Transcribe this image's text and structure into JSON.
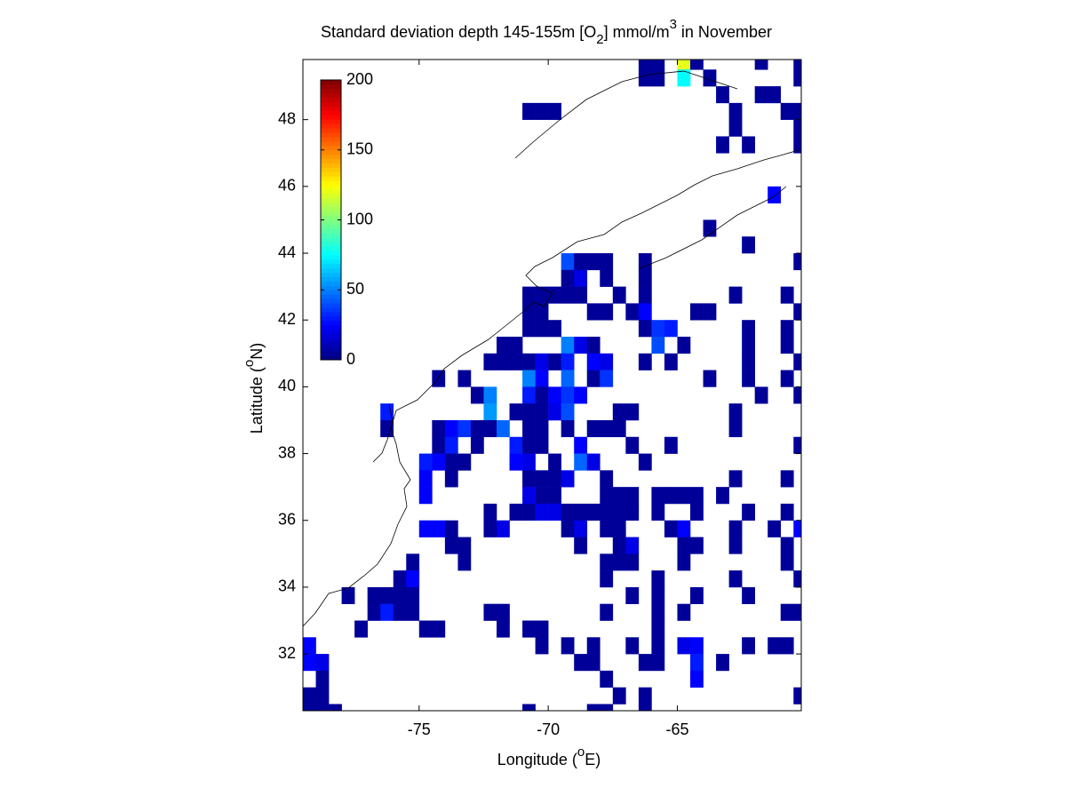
{
  "chart_data": {
    "type": "heatmap",
    "title_parts": [
      "Standard deviation depth 145-155m [O",
      "2",
      "] mmol/m",
      "3",
      " in November"
    ],
    "xlabel_parts": [
      "Longitude (",
      "o",
      "E)"
    ],
    "ylabel_parts": [
      "Latitude (",
      "o",
      "N)"
    ],
    "xlim": [
      -79.5,
      -60.2
    ],
    "ylim": [
      30.3,
      49.8
    ],
    "xticks": [
      -75,
      -70,
      -65
    ],
    "yticks": [
      32,
      34,
      36,
      38,
      40,
      42,
      44,
      46,
      48
    ],
    "colormap": "jet",
    "clim": [
      0,
      200
    ],
    "cticks": [
      0,
      50,
      100,
      150,
      200
    ],
    "colorbar_corner": "upper left",
    "cells": [
      [
        -66.25,
        49.75,
        5
      ],
      [
        -65.75,
        49.75,
        5
      ],
      [
        -64.75,
        49.75,
        120
      ],
      [
        -64.25,
        49.75,
        5
      ],
      [
        -61.75,
        49.75,
        5
      ],
      [
        -60.25,
        49.75,
        5
      ],
      [
        -66.25,
        49.25,
        5
      ],
      [
        -65.75,
        49.25,
        5
      ],
      [
        -64.75,
        49.25,
        75
      ],
      [
        -63.75,
        49.25,
        5
      ],
      [
        -60.25,
        49.25,
        5
      ],
      [
        -63.25,
        48.75,
        5
      ],
      [
        -61.75,
        48.75,
        5
      ],
      [
        -61.25,
        48.75,
        5
      ],
      [
        -70.75,
        48.25,
        5
      ],
      [
        -70.25,
        48.25,
        5
      ],
      [
        -69.75,
        48.25,
        5
      ],
      [
        -62.75,
        48.25,
        5
      ],
      [
        -60.75,
        48.25,
        5
      ],
      [
        -60.25,
        48.25,
        5
      ],
      [
        -62.75,
        47.75,
        5
      ],
      [
        -60.25,
        47.75,
        5
      ],
      [
        -63.25,
        47.25,
        5
      ],
      [
        -62.25,
        47.25,
        5
      ],
      [
        -60.25,
        47.25,
        5
      ],
      [
        -61.25,
        45.75,
        25
      ],
      [
        -63.75,
        44.75,
        5
      ],
      [
        -62.25,
        44.25,
        5
      ],
      [
        -69.25,
        43.75,
        40
      ],
      [
        -68.75,
        43.75,
        5
      ],
      [
        -68.25,
        43.75,
        5
      ],
      [
        -67.75,
        43.75,
        5
      ],
      [
        -66.25,
        43.75,
        5
      ],
      [
        -60.25,
        43.75,
        5
      ],
      [
        -69.25,
        43.25,
        5
      ],
      [
        -68.75,
        43.25,
        20
      ],
      [
        -67.75,
        43.25,
        5
      ],
      [
        -66.25,
        43.25,
        5
      ],
      [
        -70.75,
        42.75,
        5
      ],
      [
        -70.25,
        42.75,
        5
      ],
      [
        -69.75,
        42.75,
        5
      ],
      [
        -69.25,
        42.75,
        5
      ],
      [
        -68.75,
        42.75,
        5
      ],
      [
        -67.25,
        42.75,
        5
      ],
      [
        -66.25,
        42.75,
        5
      ],
      [
        -62.75,
        42.75,
        5
      ],
      [
        -60.75,
        42.75,
        5
      ],
      [
        -70.75,
        42.25,
        5
      ],
      [
        -70.25,
        42.25,
        5
      ],
      [
        -68.25,
        42.25,
        5
      ],
      [
        -67.75,
        42.25,
        5
      ],
      [
        -66.75,
        42.25,
        5
      ],
      [
        -66.25,
        42.25,
        25
      ],
      [
        -64.25,
        42.25,
        5
      ],
      [
        -63.75,
        42.25,
        5
      ],
      [
        -60.25,
        42.25,
        5
      ],
      [
        -70.75,
        41.75,
        5
      ],
      [
        -70.25,
        41.75,
        5
      ],
      [
        -69.75,
        41.75,
        5
      ],
      [
        -66.25,
        41.75,
        5
      ],
      [
        -65.75,
        41.75,
        35
      ],
      [
        -65.25,
        41.75,
        30
      ],
      [
        -62.25,
        41.75,
        5
      ],
      [
        -60.75,
        41.75,
        5
      ],
      [
        -71.75,
        41.25,
        5
      ],
      [
        -71.25,
        41.25,
        5
      ],
      [
        -69.25,
        41.25,
        50
      ],
      [
        -68.75,
        41.25,
        20
      ],
      [
        -68.25,
        41.25,
        5
      ],
      [
        -65.75,
        41.25,
        40
      ],
      [
        -64.75,
        41.25,
        5
      ],
      [
        -62.25,
        41.25,
        5
      ],
      [
        -60.75,
        41.25,
        5
      ],
      [
        -72.25,
        40.75,
        5
      ],
      [
        -71.75,
        40.75,
        5
      ],
      [
        -71.25,
        40.75,
        5
      ],
      [
        -70.75,
        40.75,
        5
      ],
      [
        -70.25,
        40.75,
        20
      ],
      [
        -69.75,
        40.75,
        5
      ],
      [
        -69.25,
        40.75,
        30
      ],
      [
        -68.25,
        40.75,
        25
      ],
      [
        -67.75,
        40.75,
        20
      ],
      [
        -66.25,
        40.75,
        5
      ],
      [
        -65.25,
        40.75,
        5
      ],
      [
        -62.25,
        40.75,
        5
      ],
      [
        -60.25,
        40.75,
        5
      ],
      [
        -74.25,
        40.25,
        5
      ],
      [
        -73.25,
        40.25,
        5
      ],
      [
        -70.75,
        40.25,
        50
      ],
      [
        -70.25,
        40.25,
        25
      ],
      [
        -69.25,
        40.25,
        45
      ],
      [
        -68.25,
        40.25,
        5
      ],
      [
        -67.75,
        40.25,
        35
      ],
      [
        -63.75,
        40.25,
        5
      ],
      [
        -62.25,
        40.25,
        5
      ],
      [
        -60.75,
        40.25,
        5
      ],
      [
        -72.75,
        39.75,
        5
      ],
      [
        -72.25,
        39.75,
        50
      ],
      [
        -70.75,
        39.75,
        30
      ],
      [
        -70.25,
        39.75,
        5
      ],
      [
        -69.75,
        39.75,
        25
      ],
      [
        -69.25,
        39.75,
        35
      ],
      [
        -68.75,
        39.75,
        25
      ],
      [
        -61.75,
        39.75,
        5
      ],
      [
        -60.25,
        39.75,
        5
      ],
      [
        -76.25,
        39.25,
        30
      ],
      [
        -72.25,
        39.25,
        55
      ],
      [
        -71.25,
        39.25,
        5
      ],
      [
        -70.75,
        39.25,
        5
      ],
      [
        -70.25,
        39.25,
        5
      ],
      [
        -69.75,
        39.25,
        20
      ],
      [
        -69.25,
        39.25,
        40
      ],
      [
        -67.25,
        39.25,
        5
      ],
      [
        -66.75,
        39.25,
        5
      ],
      [
        -62.75,
        39.25,
        5
      ],
      [
        -76.25,
        38.75,
        5
      ],
      [
        -74.25,
        38.75,
        5
      ],
      [
        -73.75,
        38.75,
        25
      ],
      [
        -73.25,
        38.75,
        35
      ],
      [
        -72.75,
        38.75,
        5
      ],
      [
        -72.25,
        38.75,
        5
      ],
      [
        -71.75,
        38.75,
        45
      ],
      [
        -70.75,
        38.75,
        5
      ],
      [
        -70.25,
        38.75,
        5
      ],
      [
        -69.25,
        38.75,
        5
      ],
      [
        -68.25,
        38.75,
        5
      ],
      [
        -67.75,
        38.75,
        5
      ],
      [
        -67.25,
        38.75,
        5
      ],
      [
        -62.75,
        38.75,
        5
      ],
      [
        -74.25,
        38.25,
        5
      ],
      [
        -73.75,
        38.25,
        30
      ],
      [
        -72.75,
        38.25,
        5
      ],
      [
        -71.25,
        38.25,
        30
      ],
      [
        -70.75,
        38.25,
        5
      ],
      [
        -70.25,
        38.25,
        5
      ],
      [
        -68.75,
        38.25,
        25
      ],
      [
        -66.75,
        38.25,
        5
      ],
      [
        -65.25,
        38.25,
        5
      ],
      [
        -60.25,
        38.25,
        5
      ],
      [
        -74.75,
        37.75,
        30
      ],
      [
        -74.25,
        37.75,
        25
      ],
      [
        -73.75,
        37.75,
        5
      ],
      [
        -73.25,
        37.75,
        5
      ],
      [
        -71.25,
        37.75,
        25
      ],
      [
        -70.75,
        37.75,
        20
      ],
      [
        -69.75,
        37.75,
        5
      ],
      [
        -68.75,
        37.75,
        45
      ],
      [
        -68.25,
        37.75,
        20
      ],
      [
        -66.25,
        37.75,
        5
      ],
      [
        -74.75,
        37.25,
        25
      ],
      [
        -73.75,
        37.25,
        5
      ],
      [
        -70.75,
        37.25,
        5
      ],
      [
        -70.25,
        37.25,
        5
      ],
      [
        -69.75,
        37.25,
        5
      ],
      [
        -69.25,
        37.25,
        20
      ],
      [
        -67.75,
        37.25,
        5
      ],
      [
        -62.75,
        37.25,
        5
      ],
      [
        -60.75,
        37.25,
        5
      ],
      [
        -74.75,
        36.75,
        25
      ],
      [
        -70.75,
        36.75,
        20
      ],
      [
        -70.25,
        36.75,
        5
      ],
      [
        -69.75,
        36.75,
        5
      ],
      [
        -67.75,
        36.75,
        5
      ],
      [
        -67.25,
        36.75,
        5
      ],
      [
        -66.75,
        36.75,
        5
      ],
      [
        -65.75,
        36.75,
        5
      ],
      [
        -65.25,
        36.75,
        5
      ],
      [
        -64.75,
        36.75,
        5
      ],
      [
        -64.25,
        36.75,
        5
      ],
      [
        -63.25,
        36.75,
        5
      ],
      [
        -72.25,
        36.25,
        5
      ],
      [
        -71.25,
        36.25,
        5
      ],
      [
        -70.75,
        36.25,
        5
      ],
      [
        -70.25,
        36.25,
        20
      ],
      [
        -69.75,
        36.25,
        20
      ],
      [
        -69.25,
        36.25,
        5
      ],
      [
        -68.75,
        36.25,
        5
      ],
      [
        -68.25,
        36.25,
        5
      ],
      [
        -67.75,
        36.25,
        5
      ],
      [
        -67.25,
        36.25,
        5
      ],
      [
        -66.75,
        36.25,
        5
      ],
      [
        -65.75,
        36.25,
        5
      ],
      [
        -64.25,
        36.25,
        5
      ],
      [
        -62.25,
        36.25,
        5
      ],
      [
        -60.75,
        36.25,
        5
      ],
      [
        -74.75,
        35.75,
        25
      ],
      [
        -74.25,
        35.75,
        25
      ],
      [
        -73.75,
        35.75,
        5
      ],
      [
        -72.25,
        35.75,
        5
      ],
      [
        -71.75,
        35.75,
        20
      ],
      [
        -69.25,
        35.75,
        5
      ],
      [
        -68.75,
        35.75,
        20
      ],
      [
        -67.75,
        35.75,
        5
      ],
      [
        -67.25,
        35.75,
        5
      ],
      [
        -65.25,
        35.75,
        5
      ],
      [
        -64.75,
        35.75,
        25
      ],
      [
        -62.75,
        35.75,
        5
      ],
      [
        -61.25,
        35.75,
        5
      ],
      [
        -60.25,
        35.75,
        25
      ],
      [
        -73.75,
        35.25,
        5
      ],
      [
        -73.25,
        35.25,
        5
      ],
      [
        -68.75,
        35.25,
        5
      ],
      [
        -67.25,
        35.25,
        5
      ],
      [
        -66.75,
        35.25,
        20
      ],
      [
        -64.75,
        35.25,
        5
      ],
      [
        -64.25,
        35.25,
        5
      ],
      [
        -62.75,
        35.25,
        5
      ],
      [
        -60.75,
        35.25,
        5
      ],
      [
        -75.25,
        34.75,
        5
      ],
      [
        -73.25,
        34.75,
        5
      ],
      [
        -67.75,
        34.75,
        5
      ],
      [
        -67.25,
        34.75,
        5
      ],
      [
        -66.75,
        34.75,
        5
      ],
      [
        -64.75,
        34.75,
        5
      ],
      [
        -60.75,
        34.75,
        5
      ],
      [
        -75.75,
        34.25,
        5
      ],
      [
        -75.25,
        34.25,
        25
      ],
      [
        -67.75,
        34.25,
        5
      ],
      [
        -65.75,
        34.25,
        5
      ],
      [
        -62.75,
        34.25,
        5
      ],
      [
        -60.25,
        34.25,
        5
      ],
      [
        -77.75,
        33.75,
        5
      ],
      [
        -76.75,
        33.75,
        5
      ],
      [
        -76.25,
        33.75,
        5
      ],
      [
        -75.75,
        33.75,
        5
      ],
      [
        -75.25,
        33.75,
        5
      ],
      [
        -66.75,
        33.75,
        5
      ],
      [
        -65.75,
        33.75,
        5
      ],
      [
        -64.25,
        33.75,
        5
      ],
      [
        -62.25,
        33.75,
        5
      ],
      [
        -76.75,
        33.25,
        5
      ],
      [
        -76.25,
        33.25,
        30
      ],
      [
        -75.75,
        33.25,
        5
      ],
      [
        -75.25,
        33.25,
        5
      ],
      [
        -72.25,
        33.25,
        5
      ],
      [
        -71.75,
        33.25,
        5
      ],
      [
        -67.75,
        33.25,
        5
      ],
      [
        -65.75,
        33.25,
        5
      ],
      [
        -64.75,
        33.25,
        5
      ],
      [
        -60.75,
        33.25,
        5
      ],
      [
        -60.25,
        33.25,
        5
      ],
      [
        -77.25,
        32.75,
        5
      ],
      [
        -74.75,
        32.75,
        5
      ],
      [
        -74.25,
        32.75,
        5
      ],
      [
        -71.75,
        32.75,
        5
      ],
      [
        -70.75,
        32.75,
        5
      ],
      [
        -70.25,
        32.75,
        5
      ],
      [
        -65.75,
        32.75,
        5
      ],
      [
        -79.25,
        32.25,
        25
      ],
      [
        -70.25,
        32.25,
        5
      ],
      [
        -69.25,
        32.25,
        5
      ],
      [
        -68.25,
        32.25,
        5
      ],
      [
        -66.75,
        32.25,
        5
      ],
      [
        -65.75,
        32.25,
        5
      ],
      [
        -64.75,
        32.25,
        20
      ],
      [
        -64.25,
        32.25,
        25
      ],
      [
        -62.25,
        32.25,
        5
      ],
      [
        -61.25,
        32.25,
        5
      ],
      [
        -60.75,
        32.25,
        5
      ],
      [
        -79.25,
        31.75,
        25
      ],
      [
        -78.75,
        31.75,
        20
      ],
      [
        -68.75,
        31.75,
        5
      ],
      [
        -68.25,
        31.75,
        5
      ],
      [
        -66.25,
        31.75,
        5
      ],
      [
        -65.75,
        31.75,
        5
      ],
      [
        -64.25,
        31.75,
        30
      ],
      [
        -63.25,
        31.75,
        5
      ],
      [
        -78.75,
        31.25,
        5
      ],
      [
        -67.75,
        31.25,
        5
      ],
      [
        -64.25,
        31.25,
        25
      ],
      [
        -79.25,
        30.75,
        5
      ],
      [
        -78.75,
        30.75,
        5
      ],
      [
        -67.25,
        30.75,
        5
      ],
      [
        -66.25,
        30.75,
        5
      ],
      [
        -60.25,
        30.75,
        5
      ],
      [
        -79.25,
        30.25,
        5
      ],
      [
        -78.75,
        30.25,
        5
      ],
      [
        -78.25,
        30.25,
        5
      ],
      [
        -70.75,
        30.25,
        5
      ],
      [
        -68.25,
        30.25,
        5
      ],
      [
        -67.75,
        30.25,
        5
      ],
      [
        -66.25,
        30.25,
        5
      ]
    ]
  }
}
